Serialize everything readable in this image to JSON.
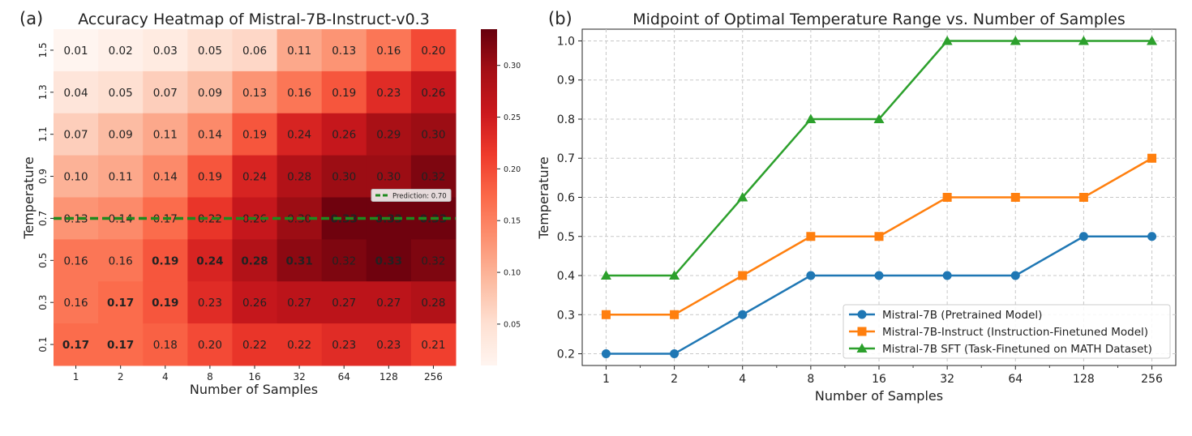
{
  "panel_labels": {
    "a": "(a)",
    "b": "(b)"
  },
  "chart_data": [
    {
      "type": "heatmap",
      "title": "Accuracy Heatmap of Mistral-7B-Instruct-v0.3",
      "xlabel": "Number of Samples",
      "ylabel": "Temperature",
      "x_categories": [
        "1",
        "2",
        "4",
        "8",
        "16",
        "32",
        "64",
        "128",
        "256"
      ],
      "y_categories": [
        "1.5",
        "1.3",
        "1.1",
        "0.9",
        "0.7",
        "0.5",
        "0.3",
        "0.1"
      ],
      "values": [
        [
          0.01,
          0.02,
          0.03,
          0.05,
          0.06,
          0.11,
          0.13,
          0.16,
          0.2
        ],
        [
          0.04,
          0.05,
          0.07,
          0.09,
          0.13,
          0.16,
          0.19,
          0.23,
          0.26
        ],
        [
          0.07,
          0.09,
          0.11,
          0.14,
          0.19,
          0.24,
          0.26,
          0.29,
          0.3
        ],
        [
          0.1,
          0.11,
          0.14,
          0.19,
          0.24,
          0.28,
          0.3,
          0.3,
          0.32
        ],
        [
          0.13,
          0.14,
          0.17,
          0.22,
          0.26,
          0.3,
          0.33,
          0.33,
          0.33
        ],
        [
          0.16,
          0.16,
          0.19,
          0.24,
          0.28,
          0.31,
          0.32,
          0.33,
          0.32
        ],
        [
          0.16,
          0.17,
          0.19,
          0.23,
          0.26,
          0.27,
          0.27,
          0.27,
          0.28
        ],
        [
          0.17,
          0.17,
          0.18,
          0.2,
          0.22,
          0.22,
          0.23,
          0.23,
          0.21
        ]
      ],
      "bold_cells": [
        [
          4,
          6
        ],
        [
          4,
          7
        ],
        [
          4,
          8
        ],
        [
          5,
          2
        ],
        [
          5,
          3
        ],
        [
          5,
          4
        ],
        [
          5,
          5
        ],
        [
          5,
          7
        ],
        [
          6,
          1
        ],
        [
          6,
          2
        ],
        [
          7,
          0
        ],
        [
          7,
          1
        ]
      ],
      "colorbar": {
        "min": 0.01,
        "max": 0.335,
        "ticks": [
          0.05,
          0.1,
          0.15,
          0.2,
          0.25,
          0.3
        ],
        "tick_labels": [
          "0.05",
          "0.10",
          "0.15",
          "0.20",
          "0.25",
          "0.30"
        ]
      },
      "prediction": {
        "temperature": 0.7,
        "label": "Prediction: 0.70",
        "color": "#1f8a1f"
      }
    },
    {
      "type": "line",
      "title": "Midpoint of Optimal Temperature Range vs. Number of Samples",
      "xlabel": "Number of Samples",
      "ylabel": "Temperature",
      "x": [
        1,
        2,
        4,
        8,
        16,
        32,
        64,
        128,
        256
      ],
      "x_tick_labels": [
        "1",
        "2",
        "4",
        "8",
        "16",
        "32",
        "64",
        "128",
        "256"
      ],
      "x_scale": "log2",
      "ylim": [
        0.17,
        1.03
      ],
      "y_ticks": [
        0.2,
        0.3,
        0.4,
        0.5,
        0.6,
        0.7,
        0.8,
        0.9,
        1.0
      ],
      "y_tick_labels": [
        "0.2",
        "0.3",
        "0.4",
        "0.5",
        "0.6",
        "0.7",
        "0.8",
        "0.9",
        "1.0"
      ],
      "grid": true,
      "legend_position": "lower-right",
      "series": [
        {
          "name": "Mistral-7B (Pretrained Model)",
          "marker": "circle",
          "color": "#1f77b4",
          "values": [
            0.2,
            0.2,
            0.3,
            0.4,
            0.4,
            0.4,
            0.4,
            0.5,
            0.5
          ]
        },
        {
          "name": "Mistral-7B-Instruct (Instruction-Finetuned Model)",
          "marker": "square",
          "color": "#ff7f0e",
          "values": [
            0.3,
            0.3,
            0.4,
            0.5,
            0.5,
            0.6,
            0.6,
            0.6,
            0.7
          ]
        },
        {
          "name": "Mistral-7B SFT (Task-Finetuned on MATH Dataset)",
          "marker": "triangle",
          "color": "#2ca02c",
          "values": [
            0.4,
            0.4,
            0.6,
            0.8,
            0.8,
            1.0,
            1.0,
            1.0,
            1.0
          ]
        }
      ]
    }
  ]
}
